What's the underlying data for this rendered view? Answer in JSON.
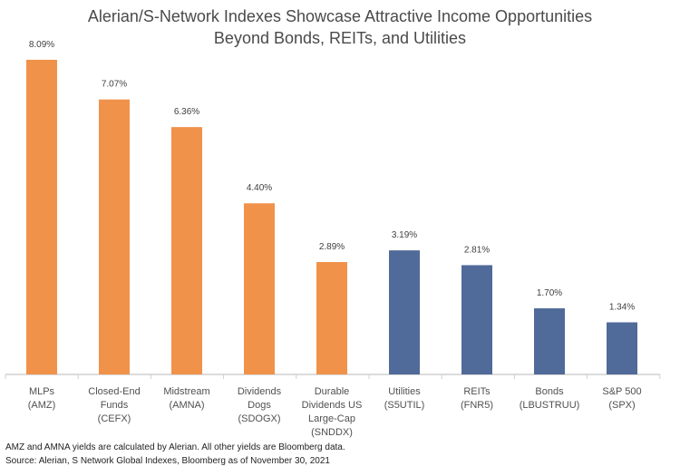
{
  "chart_data": {
    "type": "bar",
    "title_lines": [
      "Alerian/S-Network Indexes Showcase Attractive Income Opportunities",
      "Beyond Bonds, REITs, and Utilities"
    ],
    "categories": [
      [
        "MLPs",
        "(AMZ)"
      ],
      [
        "Closed-End",
        "Funds",
        "(CEFX)"
      ],
      [
        "Midstream",
        "(AMNA)"
      ],
      [
        "Dividends",
        "Dogs",
        "(SDOGX)"
      ],
      [
        "Durable",
        "Dividends US",
        "Large-Cap",
        "(SNDDX)"
      ],
      [
        "Utilities",
        "(S5UTIL)"
      ],
      [
        "REITs",
        "(FNR5)"
      ],
      [
        "Bonds",
        "(LBUSTRUU)"
      ],
      [
        "S&P 500",
        "(SPX)"
      ]
    ],
    "values": [
      8.09,
      7.07,
      6.36,
      4.4,
      2.89,
      3.19,
      2.81,
      1.7,
      1.34
    ],
    "labels": [
      "8.09%",
      "7.07%",
      "6.36%",
      "4.40%",
      "2.89%",
      "3.19%",
      "2.81%",
      "1.70%",
      "1.34%"
    ],
    "groups": [
      "alerian",
      "alerian",
      "alerian",
      "alerian",
      "alerian",
      "other",
      "other",
      "other",
      "other"
    ],
    "colors": {
      "alerian": "#F0924A",
      "other": "#506A99"
    },
    "ylim": [
      0,
      8.5
    ],
    "grid": false,
    "xlabel": "",
    "ylabel": ""
  },
  "footnotes": [
    "AMZ and AMNA yields are calculated by Alerian. All other yields are Bloomberg data.",
    "Source: Alerian, S Network Global Indexes, Bloomberg as of November 30, 2021"
  ]
}
